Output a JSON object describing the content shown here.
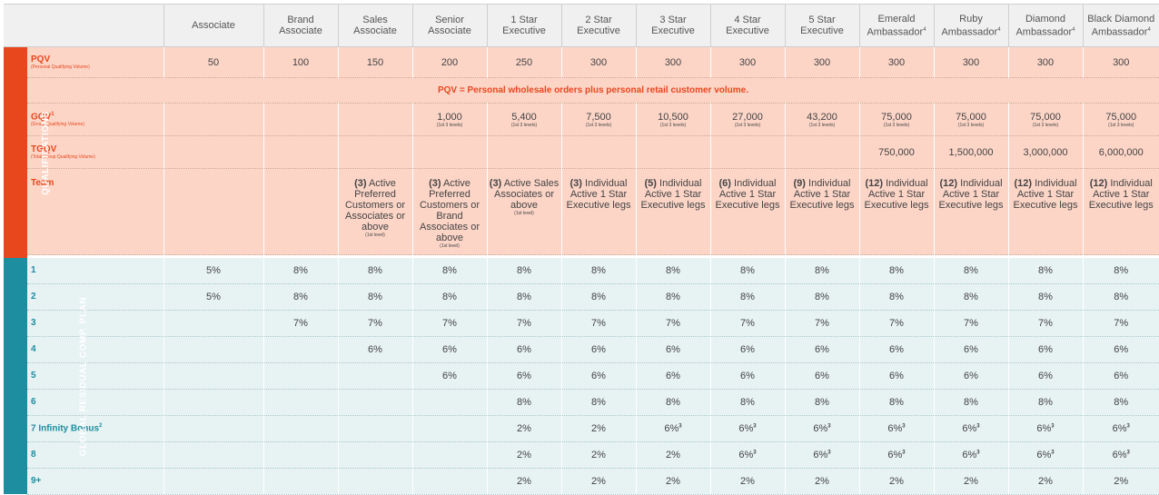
{
  "ranks": [
    "Associate",
    "Brand",
    "Sales",
    "Senior",
    "1 Star",
    "2 Star",
    "3 Star",
    "4 Star",
    "5 Star",
    "Emerald",
    "Ruby",
    "Diamond",
    "Black Diamond"
  ],
  "ranks_line2": [
    "",
    "Associate",
    "Associate",
    "Associate",
    "Executive",
    "Executive",
    "Executive",
    "Executive",
    "Executive",
    "Ambassador",
    "Ambassador",
    "Ambassador",
    "Ambassador"
  ],
  "sections": {
    "qualifications": "QUALIFICATIONS",
    "residual": "GLOBAL RESIDUAL COMP. PLAN"
  },
  "footnotes": {
    "ambassador": "4",
    "gqv": "1",
    "infinity": "2",
    "six_percent": "3"
  },
  "colors": {
    "qualifications_accent": "#e8471e",
    "qualifications_bg": "#fcd5c7",
    "residual_accent": "#1d8ea0",
    "residual_bg": "#e7f2f3",
    "header_bg": "#f0f0f0"
  },
  "qual": {
    "pqv": {
      "label": "PQV",
      "sub": "(Personal Qualifying Volume)",
      "values": [
        "50",
        "100",
        "150",
        "200",
        "250",
        "300",
        "300",
        "300",
        "300",
        "300",
        "300",
        "300",
        "300"
      ]
    },
    "pqv_note": "PQV = Personal wholesale orders plus personal retail customer volume.",
    "gqv": {
      "label": "GQV",
      "sub": "(Group Qualifying Volume)",
      "note": "(1st 3 levels)",
      "values": [
        "",
        "",
        "",
        "1,000",
        "5,400",
        "7,500",
        "10,500",
        "27,000",
        "43,200",
        "75,000",
        "75,000",
        "75,000",
        "75,000"
      ]
    },
    "tgqv": {
      "label": "TGQV",
      "sub": "(Total Group Qualifying Volume)",
      "values": [
        "",
        "",
        "",
        "",
        "",
        "",
        "",
        "",
        "",
        "750,000",
        "1,500,000",
        "3,000,000",
        "6,000,000"
      ]
    },
    "team": {
      "label": "Team",
      "values": [
        null,
        null,
        {
          "count": "(3)",
          "text": "Active Preferred Customers or Associates or above",
          "note": "(1st level)"
        },
        {
          "count": "(3)",
          "text": "Active Preferred Customers or Brand Associates or above",
          "note": "(1st level)"
        },
        {
          "count": "(3)",
          "text": "Active Sales Associates or above",
          "note": "(1st level)"
        },
        {
          "count": "(3)",
          "text": "Individual Active 1 Star Executive legs"
        },
        {
          "count": "(5)",
          "text": "Individual Active 1 Star Executive legs"
        },
        {
          "count": "(6)",
          "text": "Individual Active 1 Star Executive legs"
        },
        {
          "count": "(9)",
          "text": "Individual Active 1 Star Executive legs"
        },
        {
          "count": "(12)",
          "text": "Individual Active 1 Star Executive legs"
        },
        {
          "count": "(12)",
          "text": "Individual Active 1 Star Executive legs"
        },
        {
          "count": "(12)",
          "text": "Individual Active 1 Star Executive legs"
        },
        {
          "count": "(12)",
          "text": "Individual Active 1 Star Executive legs"
        }
      ]
    }
  },
  "levels": [
    {
      "label": "1",
      "values": [
        "5%",
        "8%",
        "8%",
        "8%",
        "8%",
        "8%",
        "8%",
        "8%",
        "8%",
        "8%",
        "8%",
        "8%",
        "8%"
      ]
    },
    {
      "label": "2",
      "values": [
        "5%",
        "8%",
        "8%",
        "8%",
        "8%",
        "8%",
        "8%",
        "8%",
        "8%",
        "8%",
        "8%",
        "8%",
        "8%"
      ]
    },
    {
      "label": "3",
      "values": [
        "",
        "7%",
        "7%",
        "7%",
        "7%",
        "7%",
        "7%",
        "7%",
        "7%",
        "7%",
        "7%",
        "7%",
        "7%"
      ]
    },
    {
      "label": "4",
      "values": [
        "",
        "",
        "6%",
        "6%",
        "6%",
        "6%",
        "6%",
        "6%",
        "6%",
        "6%",
        "6%",
        "6%",
        "6%"
      ]
    },
    {
      "label": "5",
      "values": [
        "",
        "",
        "",
        "6%",
        "6%",
        "6%",
        "6%",
        "6%",
        "6%",
        "6%",
        "6%",
        "6%",
        "6%"
      ]
    },
    {
      "label": "6",
      "values": [
        "",
        "",
        "",
        "",
        "8%",
        "8%",
        "8%",
        "8%",
        "8%",
        "8%",
        "8%",
        "8%",
        "8%"
      ]
    },
    {
      "label": "7 Infinity Bonus",
      "values": [
        "",
        "",
        "",
        "",
        "2%",
        "2%",
        "6%",
        "6%",
        "6%",
        "6%",
        "6%",
        "6%",
        "6%"
      ]
    },
    {
      "label": "8",
      "values": [
        "",
        "",
        "",
        "",
        "2%",
        "2%",
        "2%",
        "6%",
        "6%",
        "6%",
        "6%",
        "6%",
        "6%"
      ]
    },
    {
      "label": "9+",
      "values": [
        "",
        "",
        "",
        "",
        "2%",
        "2%",
        "2%",
        "2%",
        "2%",
        "2%",
        "2%",
        "2%",
        "2%"
      ]
    }
  ]
}
